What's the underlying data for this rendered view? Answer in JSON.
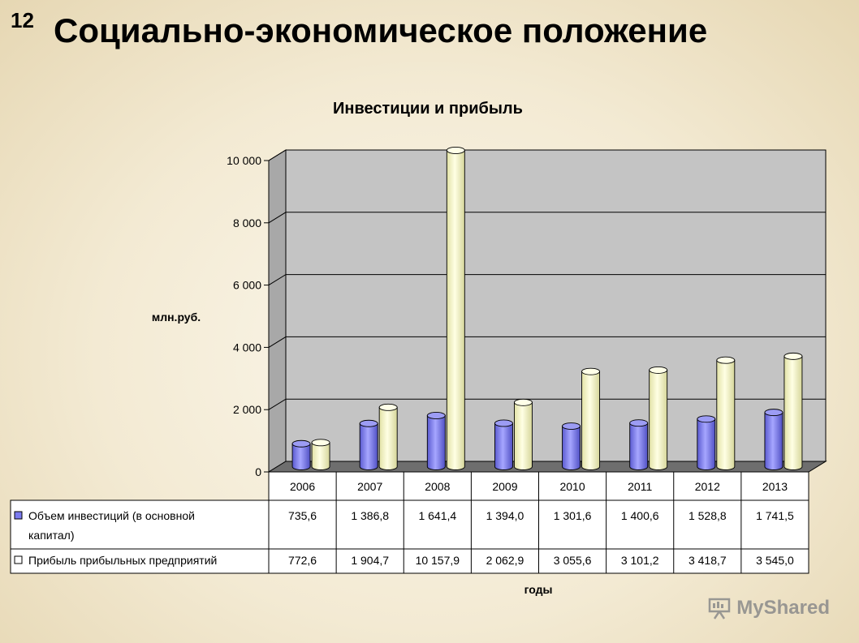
{
  "slide": {
    "number": "12",
    "title": "Социально-экономическое положение"
  },
  "watermark": {
    "text": "MyShared"
  },
  "chart_data": {
    "type": "bar",
    "title": "Инвестиции и прибыль",
    "ylabel": "млн.руб.",
    "xlabel": "годы",
    "ylim": [
      0,
      10000
    ],
    "yticks": [
      0,
      2000,
      4000,
      6000,
      8000,
      10000
    ],
    "ytick_labels": [
      "0",
      "2 000",
      "4 000",
      "6 000",
      "8 000",
      "10 000"
    ],
    "categories": [
      "2006",
      "2007",
      "2008",
      "2009",
      "2010",
      "2011",
      "2012",
      "2013"
    ],
    "grid": true,
    "legend": "data-table",
    "series": [
      {
        "name": "Объем инвестиций (в основной капитал)",
        "name_lines": [
          "Объем инвестиций (в основной",
          "капитал)"
        ],
        "color": "#8080ee",
        "values": [
          735.6,
          1386.8,
          1641.4,
          1394.0,
          1301.6,
          1400.6,
          1528.8,
          1741.5
        ],
        "value_labels": [
          "735,6",
          "1 386,8",
          "1 641,4",
          "1 394,0",
          "1 301,6",
          "1 400,6",
          "1 528,8",
          "1 741,5"
        ]
      },
      {
        "name": "Прибыль прибыльных предприятий",
        "name_lines": [
          "Прибыль прибыльных предприятий"
        ],
        "color": "#fafac8",
        "values": [
          772.6,
          1904.7,
          10157.9,
          2062.9,
          3055.6,
          3101.2,
          3418.7,
          3545.0
        ],
        "value_labels": [
          "772,6",
          "1 904,7",
          "10 157,9",
          "2 062,9",
          "3 055,6",
          "3 101,2",
          "3 418,7",
          "3 545,0"
        ]
      }
    ]
  }
}
